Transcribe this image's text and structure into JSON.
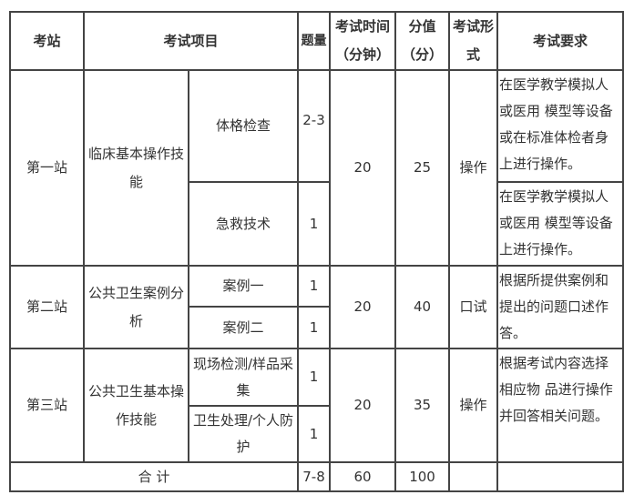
{
  "headers": {
    "station": "考站",
    "item": "考试项目",
    "count": "题量",
    "time": "考试时间（分钟）",
    "score": "分值（分）",
    "form": "考试形式",
    "requirement": "考试要求"
  },
  "stations": [
    {
      "name": "第一站",
      "item": "临床基本操作技能",
      "time": "20",
      "score": "25",
      "form": "操作",
      "subitems": [
        {
          "name": "体格检查",
          "count": "2-3",
          "requirement": "在医学教学模拟人或医用 模型等设备或在标准体检者身上进行操作。"
        },
        {
          "name": "急救技术",
          "count": "1",
          "requirement": "在医学教学模拟人或医用 模型等设备上进行操作。"
        }
      ]
    },
    {
      "name": "第二站",
      "item": "公共卫生案例分析",
      "time": "20",
      "score": "40",
      "form": "口试",
      "requirement": "根据所提供案例和提出的问题口述作答。",
      "subitems": [
        {
          "name": "案例一",
          "count": "1"
        },
        {
          "name": "案例二",
          "count": "1"
        }
      ]
    },
    {
      "name": "第三站",
      "item": "公共卫生基本操作技能",
      "time": "20",
      "score": "35",
      "form": "操作",
      "requirement": "根据考试内容选择相应物 品进行操作并回答相关问题。",
      "subitems": [
        {
          "name": "现场检测/样品采集",
          "count": "1"
        },
        {
          "name": "卫生处理/个人防护",
          "count": "1"
        }
      ]
    }
  ],
  "total": {
    "label": "合 计",
    "count": "7-8",
    "time": "60",
    "score": "100"
  }
}
